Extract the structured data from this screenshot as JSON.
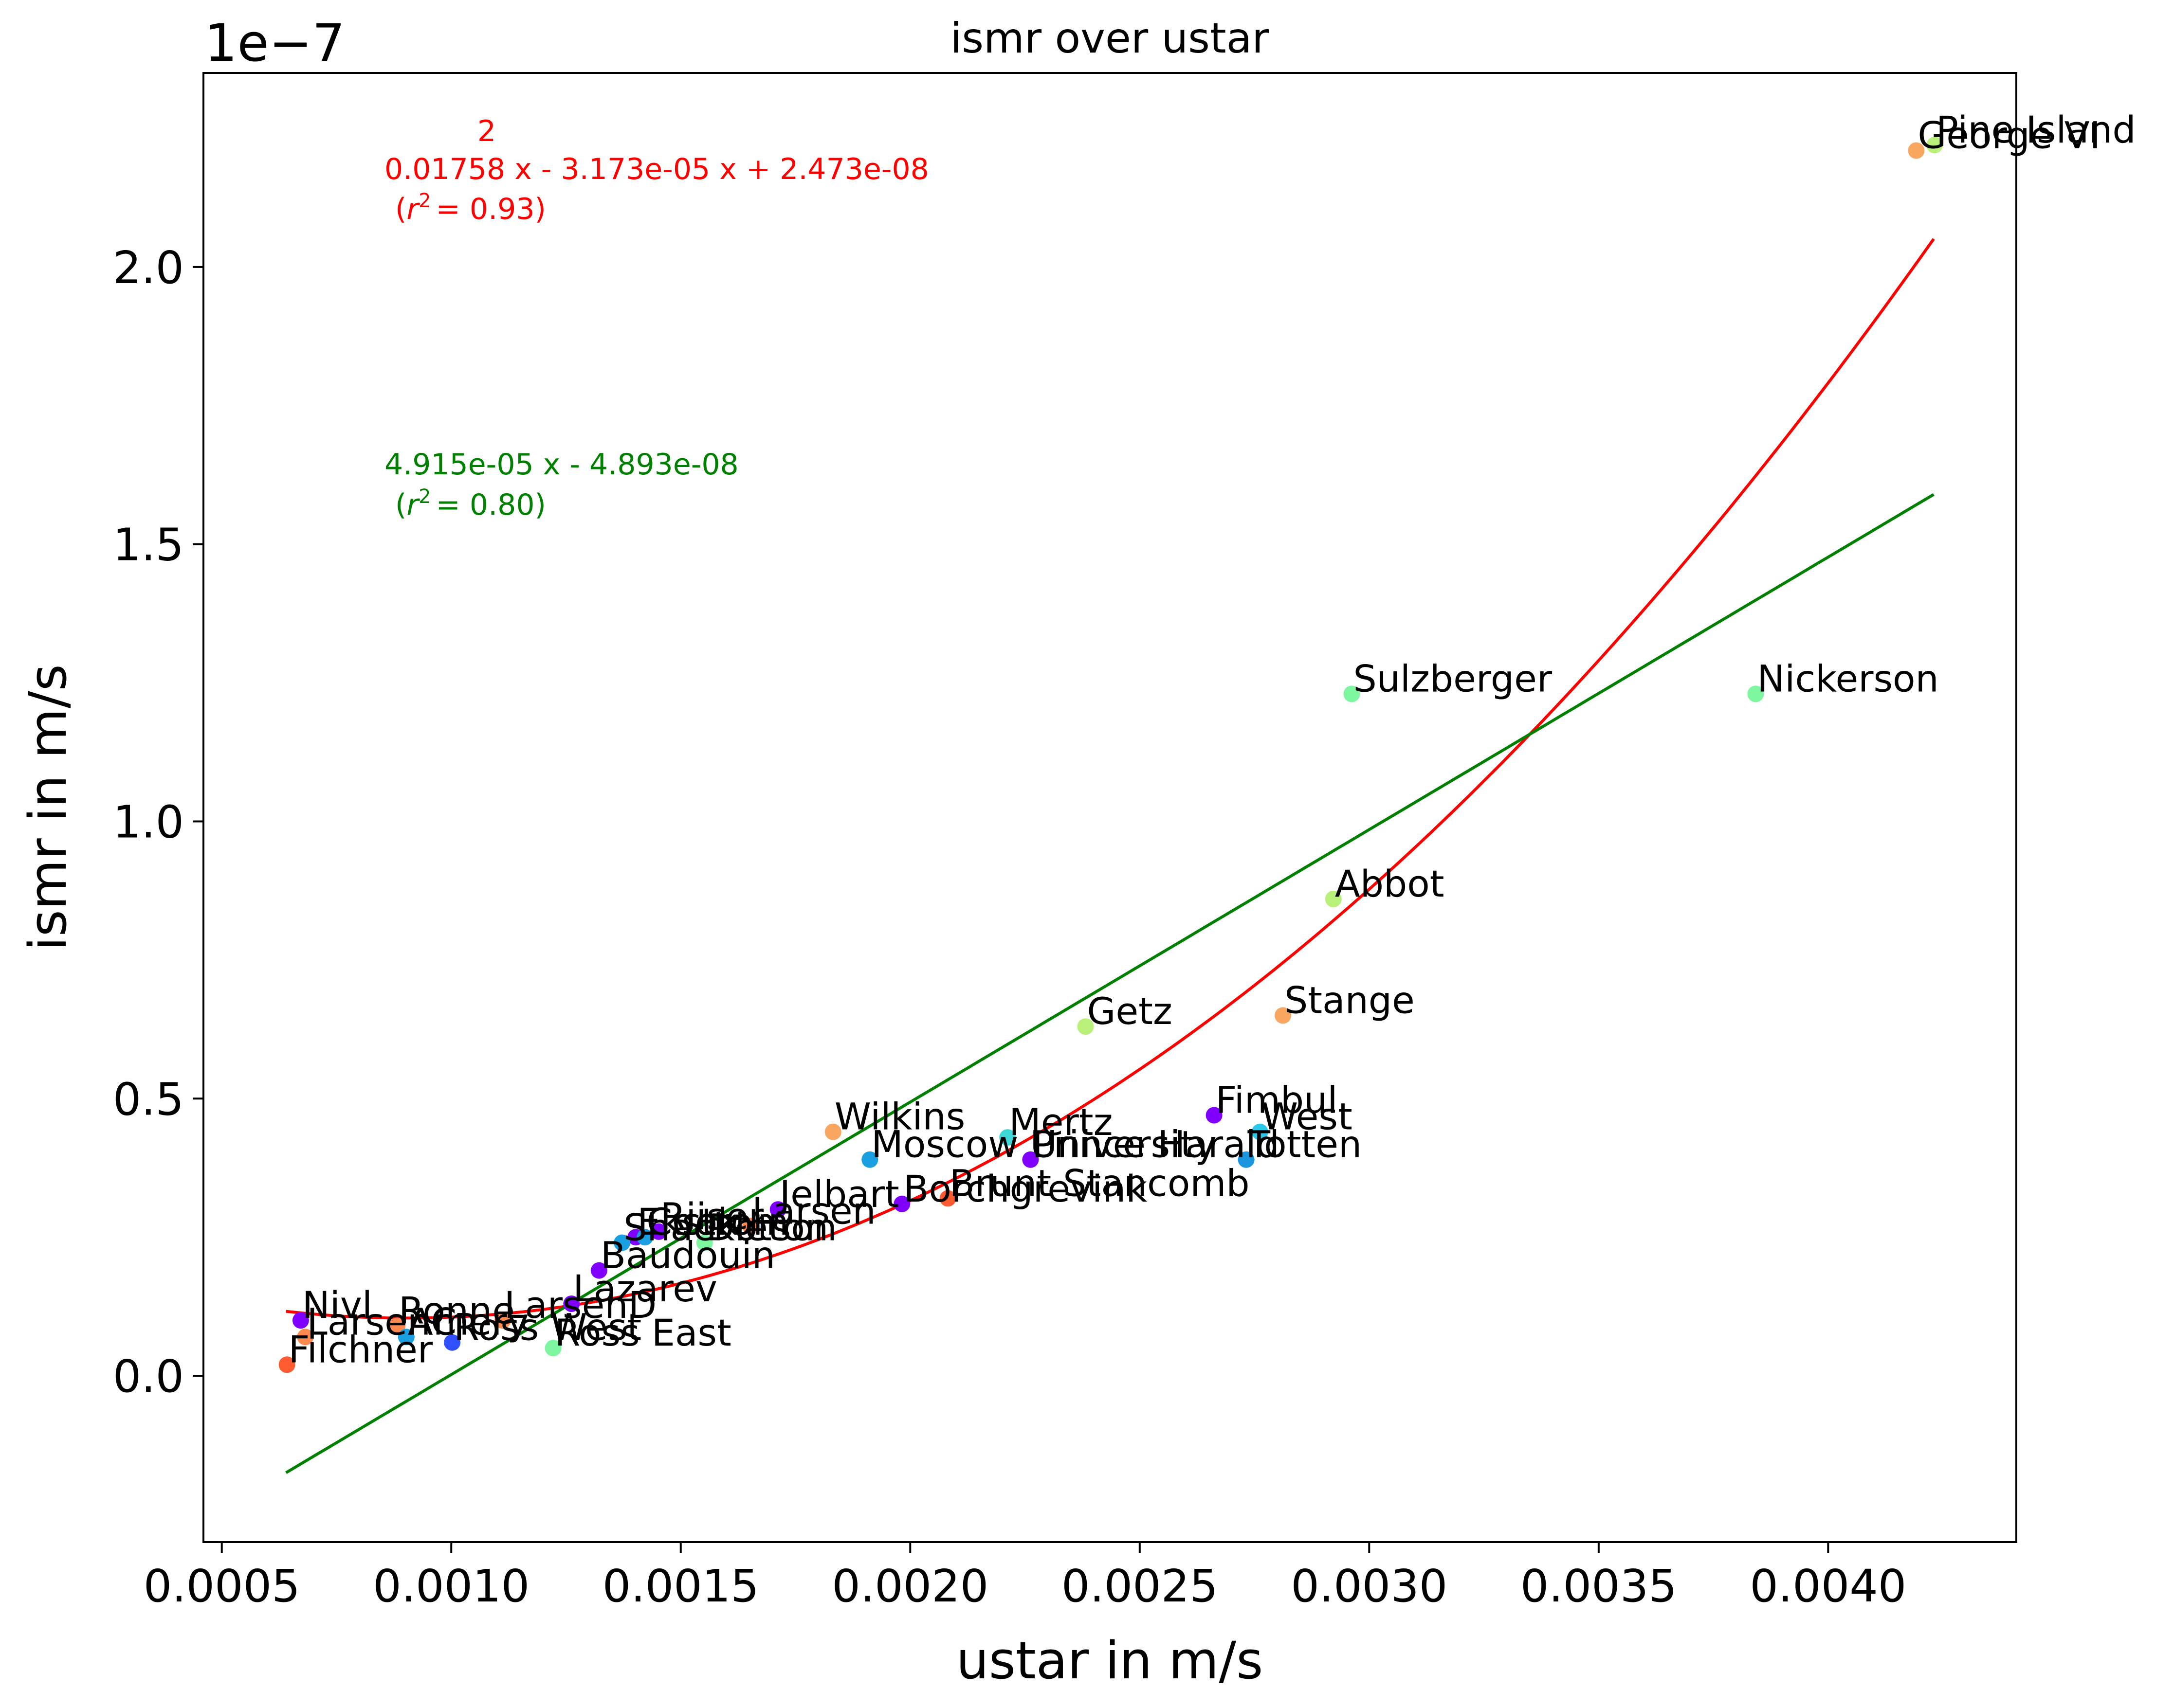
{
  "chart_data": {
    "type": "scatter",
    "title": "ismr over ustar",
    "xlabel": "ustar in m/s",
    "ylabel": "ismr in m/s",
    "y_offset_label": "1e−7",
    "y_scale": 1e-07,
    "xlim": [
      0.00046,
      0.00441
    ],
    "ylim": [
      -0.3,
      2.35
    ],
    "x_ticks": [
      0.0005,
      0.001,
      0.0015,
      0.002,
      0.0025,
      0.003,
      0.0035,
      0.004
    ],
    "x_tick_labels": [
      "0.0005",
      "0.0010",
      "0.0015",
      "0.0020",
      "0.0025",
      "0.0030",
      "0.0035",
      "0.0040"
    ],
    "y_ticks": [
      0.0,
      0.5,
      1.0,
      1.5,
      2.0
    ],
    "y_tick_labels": [
      "0.0",
      "0.5",
      "1.0",
      "1.5",
      "2.0"
    ],
    "grid": false,
    "points": [
      {
        "name": "Pine Island",
        "x": 0.004232,
        "y": 2.22,
        "color": "#b8f07a"
      },
      {
        "name": "George VI",
        "x": 0.004192,
        "y": 2.21,
        "color": "#f9a660"
      },
      {
        "name": "Nickerson",
        "x": 0.003842,
        "y": 1.23,
        "color": "#7ef6a0"
      },
      {
        "name": "Sulzberger",
        "x": 0.002962,
        "y": 1.23,
        "color": "#7ef6a0"
      },
      {
        "name": "Abbot",
        "x": 0.002922,
        "y": 0.86,
        "color": "#b8f07a"
      },
      {
        "name": "Stange",
        "x": 0.002812,
        "y": 0.65,
        "color": "#f9a660"
      },
      {
        "name": "Getz",
        "x": 0.002382,
        "y": 0.63,
        "color": "#b8f07a"
      },
      {
        "name": "Fimbul",
        "x": 0.002662,
        "y": 0.47,
        "color": "#8000ff"
      },
      {
        "name": "West",
        "x": 0.002762,
        "y": 0.44,
        "color": "#2dc8e8"
      },
      {
        "name": "Totten",
        "x": 0.002732,
        "y": 0.39,
        "color": "#1996de"
      },
      {
        "name": "Prince Harald",
        "x": 0.002262,
        "y": 0.39,
        "color": "#8000ff"
      },
      {
        "name": "Mertz",
        "x": 0.002212,
        "y": 0.43,
        "color": "#3ed8d8"
      },
      {
        "name": "Wilkins",
        "x": 0.001832,
        "y": 0.44,
        "color": "#f9a660"
      },
      {
        "name": "Moscow University",
        "x": 0.001912,
        "y": 0.39,
        "color": "#1aa0e0"
      },
      {
        "name": "Brunt Stancomb",
        "x": 0.002082,
        "y": 0.32,
        "color": "#ff5a30"
      },
      {
        "name": "Borchgrevink",
        "x": 0.001982,
        "y": 0.31,
        "color": "#8000ff"
      },
      {
        "name": "Jelbart",
        "x": 0.001712,
        "y": 0.3,
        "color": "#8000ff"
      },
      {
        "name": "Larsen",
        "x": 0.001652,
        "y": 0.27,
        "color": "#ff8a50"
      },
      {
        "name": "Riiser",
        "x": 0.001452,
        "y": 0.26,
        "color": "#8000ff"
      },
      {
        "name": "Ekstrom",
        "x": 0.001402,
        "y": 0.25,
        "color": "#8000ff"
      },
      {
        "name": "Cook",
        "x": 0.001422,
        "y": 0.25,
        "color": "#1aa0e0"
      },
      {
        "name": "Shackleton",
        "x": 0.001372,
        "y": 0.24,
        "color": "#1aa0e0"
      },
      {
        "name": "Dotson",
        "x": 0.001552,
        "y": 0.24,
        "color": "#7ef6a0"
      },
      {
        "name": "Baudouin",
        "x": 0.001322,
        "y": 0.19,
        "color": "#8000ff"
      },
      {
        "name": "Lazarev",
        "x": 0.001262,
        "y": 0.13,
        "color": "#8000ff"
      },
      {
        "name": "LarsenD",
        "x": 0.001112,
        "y": 0.1,
        "color": "#ff8a50"
      },
      {
        "name": "Nivl",
        "x": 0.000672,
        "y": 0.1,
        "color": "#8000ff"
      },
      {
        "name": "Ronne",
        "x": 0.000882,
        "y": 0.09,
        "color": "#ff8a50"
      },
      {
        "name": "LarsenC",
        "x": 0.000682,
        "y": 0.07,
        "color": "#ff8a50"
      },
      {
        "name": "Amery",
        "x": 0.000902,
        "y": 0.07,
        "color": "#1aa0e0"
      },
      {
        "name": "Ross West",
        "x": 0.001002,
        "y": 0.06,
        "color": "#3050ff"
      },
      {
        "name": "Ross East",
        "x": 0.001222,
        "y": 0.05,
        "color": "#7ef6a0"
      },
      {
        "name": "Filchner",
        "x": 0.000642,
        "y": 0.02,
        "color": "#ff5a30"
      }
    ],
    "fits": [
      {
        "kind": "quadratic",
        "label_exponent": "2",
        "label": "0.01758 x - 3.173e-05 x + 2.473e-08",
        "r2_label": "= 0.93)",
        "coefficients": [
          0.01758,
          -3.173e-05,
          2.473e-08
        ],
        "x_range": [
          0.00064,
          0.00423
        ],
        "color": "#ff0000"
      },
      {
        "kind": "linear",
        "label": "4.915e-05 x - 4.893e-08",
        "r2_label": "= 0.80)",
        "coefficients": [
          4.915e-05,
          -4.893e-08
        ],
        "x_range": [
          0.00064,
          0.00423
        ],
        "color": "#008000"
      }
    ]
  }
}
